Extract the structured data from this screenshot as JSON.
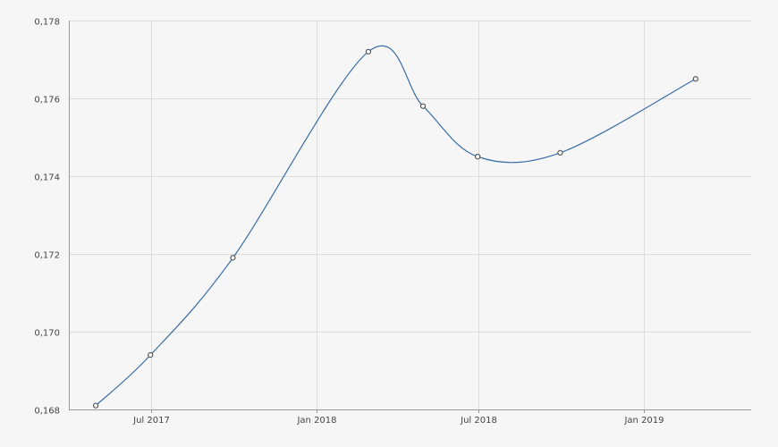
{
  "chart_data": {
    "type": "line",
    "title": "",
    "xlabel": "",
    "ylabel": "",
    "ylim": [
      0.168,
      0.178
    ],
    "xlim": [
      "2017-03-31",
      "2019-05-01"
    ],
    "grid": true,
    "y_ticks": [
      "0,168",
      "0,170",
      "0,172",
      "0,174",
      "0,176",
      "0,178"
    ],
    "y_tick_values": [
      0.168,
      0.17,
      0.172,
      0.174,
      0.176,
      0.178
    ],
    "x_ticks": [
      "Jul 2017",
      "Jan 2018",
      "Jul 2018",
      "Jan 2019"
    ],
    "x_tick_values": [
      "2017-07-01",
      "2018-01-01",
      "2018-07-01",
      "2019-01-01"
    ],
    "series": [
      {
        "color": "#3a6ea5",
        "points": [
          {
            "x": "2017-04-30",
            "y": 0.1681
          },
          {
            "x": "2017-06-30",
            "y": 0.1694
          },
          {
            "x": "2017-09-30",
            "y": 0.1719
          },
          {
            "x": "2018-02-28",
            "y": 0.1772
          },
          {
            "x": "2018-04-30",
            "y": 0.1758
          },
          {
            "x": "2018-06-30",
            "y": 0.1745
          },
          {
            "x": "2018-09-30",
            "y": 0.1746
          },
          {
            "x": "2019-02-28",
            "y": 0.1765
          }
        ]
      }
    ]
  }
}
